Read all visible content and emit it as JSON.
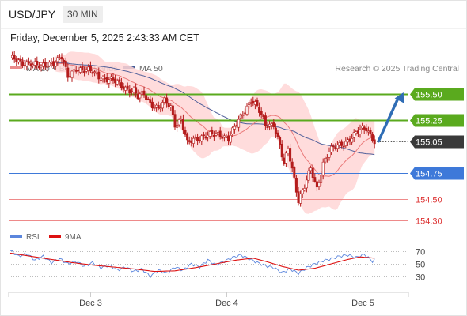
{
  "header": {
    "pair": "USD/JPY",
    "timeframe": "30 MIN",
    "datetime": "Friday, December 5, 2025 2:43:33 AM CET"
  },
  "legend": {
    "ma20_label": "MA 20 + Bollinger Bands",
    "ma50_label": "MA 50",
    "copyright": "Research © 2025 Trading Central",
    "rsi_label": "RSI",
    "rsi_ma_label": "9MA"
  },
  "colors": {
    "candle": "#b41c1c",
    "ma20": "#ea7a7a",
    "ma50": "#4f5f9a",
    "bollinger_fill": "#ffd6d6",
    "resistance": "#5aaa1e",
    "pivot": "#3e79d9",
    "support": "#ee8a8a",
    "current": "#3a3a3a",
    "arrow": "#2f6db5",
    "rsi": "#5b86dd",
    "rsi_ma": "#dd1111"
  },
  "chart_data": {
    "type": "candlestick",
    "instrument": "USD/JPY",
    "interval": "30 MIN",
    "x_ticks": [
      "Dec 3",
      "Dec 4",
      "Dec 5"
    ],
    "ylim": [
      154.12,
      156.05
    ],
    "levels": [
      {
        "value": 155.5,
        "label": "155.50",
        "kind": "resistance"
      },
      {
        "value": 155.25,
        "label": "155.25",
        "kind": "resistance"
      },
      {
        "value": 155.05,
        "label": "155.05",
        "kind": "current"
      },
      {
        "value": 154.75,
        "label": "154.75",
        "kind": "pivot"
      },
      {
        "value": 154.5,
        "label": "154.50",
        "kind": "support"
      },
      {
        "value": 154.3,
        "label": "154.30",
        "kind": "support"
      }
    ],
    "close_path": [
      [
        0,
        155.84
      ],
      [
        5,
        155.78
      ],
      [
        10,
        155.8
      ],
      [
        15,
        155.74
      ],
      [
        20,
        155.8
      ],
      [
        25,
        155.84
      ],
      [
        28,
        155.65
      ],
      [
        32,
        155.75
      ],
      [
        36,
        155.72
      ],
      [
        40,
        155.7
      ],
      [
        44,
        155.66
      ],
      [
        48,
        155.63
      ],
      [
        52,
        155.6
      ],
      [
        56,
        155.56
      ],
      [
        60,
        155.52
      ],
      [
        62,
        155.46
      ],
      [
        65,
        155.5
      ],
      [
        68,
        155.42
      ],
      [
        72,
        155.35
      ],
      [
        75,
        155.42
      ],
      [
        78,
        155.38
      ],
      [
        80,
        155.22
      ],
      [
        83,
        155.25
      ],
      [
        86,
        155.02
      ],
      [
        90,
        155.08
      ],
      [
        94,
        155.1
      ],
      [
        98,
        155.1
      ],
      [
        102,
        155.12
      ],
      [
        106,
        155.08
      ],
      [
        110,
        155.2
      ],
      [
        114,
        155.35
      ],
      [
        117,
        155.45
      ],
      [
        120,
        155.37
      ],
      [
        124,
        155.2
      ],
      [
        128,
        155.22
      ],
      [
        131,
        155.0
      ],
      [
        133,
        154.82
      ],
      [
        135,
        154.97
      ],
      [
        138,
        154.7
      ],
      [
        140,
        154.5
      ],
      [
        143,
        154.62
      ],
      [
        146,
        154.78
      ],
      [
        149,
        154.6
      ],
      [
        152,
        154.85
      ],
      [
        155,
        154.95
      ],
      [
        159,
        155.0
      ],
      [
        163,
        155.05
      ],
      [
        167,
        155.1
      ],
      [
        170,
        155.15
      ],
      [
        173,
        155.18
      ],
      [
        175,
        155.12
      ],
      [
        177,
        155.05
      ]
    ],
    "rsi": {
      "yticks": [
        70,
        50,
        30
      ],
      "ylim": [
        10,
        80
      ],
      "rsi_path": [
        [
          0,
          71
        ],
        [
          4,
          62
        ],
        [
          8,
          66
        ],
        [
          12,
          56
        ],
        [
          16,
          62
        ],
        [
          20,
          52
        ],
        [
          24,
          58
        ],
        [
          28,
          50
        ],
        [
          32,
          54
        ],
        [
          36,
          46
        ],
        [
          40,
          52
        ],
        [
          44,
          44
        ],
        [
          48,
          48
        ],
        [
          52,
          40
        ],
        [
          56,
          45
        ],
        [
          60,
          38
        ],
        [
          64,
          42
        ],
        [
          68,
          30
        ],
        [
          72,
          40
        ],
        [
          76,
          35
        ],
        [
          80,
          45
        ],
        [
          84,
          40
        ],
        [
          88,
          50
        ],
        [
          92,
          45
        ],
        [
          96,
          56
        ],
        [
          100,
          48
        ],
        [
          104,
          54
        ],
        [
          108,
          60
        ],
        [
          112,
          64
        ],
        [
          116,
          58
        ],
        [
          120,
          52
        ],
        [
          124,
          47
        ],
        [
          128,
          44
        ],
        [
          132,
          36
        ],
        [
          136,
          42
        ],
        [
          140,
          35
        ],
        [
          144,
          44
        ],
        [
          148,
          50
        ],
        [
          152,
          55
        ],
        [
          156,
          58
        ],
        [
          160,
          62
        ],
        [
          164,
          64
        ],
        [
          168,
          60
        ],
        [
          172,
          65
        ],
        [
          176,
          54
        ],
        [
          177,
          56
        ]
      ],
      "ma_path": [
        [
          0,
          67
        ],
        [
          10,
          62
        ],
        [
          20,
          57
        ],
        [
          30,
          52
        ],
        [
          40,
          48
        ],
        [
          50,
          45
        ],
        [
          60,
          42
        ],
        [
          70,
          38
        ],
        [
          80,
          39
        ],
        [
          90,
          44
        ],
        [
          100,
          50
        ],
        [
          110,
          56
        ],
        [
          118,
          59
        ],
        [
          124,
          54
        ],
        [
          132,
          46
        ],
        [
          140,
          40
        ],
        [
          148,
          43
        ],
        [
          156,
          50
        ],
        [
          164,
          57
        ],
        [
          170,
          61
        ],
        [
          177,
          59
        ]
      ]
    }
  }
}
